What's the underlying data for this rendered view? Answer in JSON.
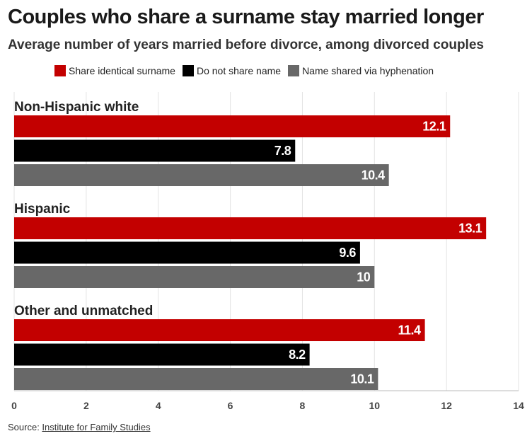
{
  "chart_data": {
    "type": "bar",
    "orientation": "horizontal",
    "title": "Couples who share a surname stay married longer",
    "subtitle": "Average number of years married before divorce, among divorced couples",
    "groups": [
      "Non-Hispanic white",
      "Hispanic",
      "Other and unmatched"
    ],
    "series": [
      {
        "name": "Share identical surname",
        "color": "#c30000",
        "values": [
          12.1,
          13.1,
          11.4
        ]
      },
      {
        "name": "Do not share name",
        "color": "#000000",
        "values": [
          7.8,
          9.6,
          8.2
        ]
      },
      {
        "name": "Name shared via hyphenation",
        "color": "#686868",
        "values": [
          10.4,
          10,
          10.1
        ]
      }
    ],
    "value_labels": [
      [
        "12.1",
        "13.1",
        "11.4"
      ],
      [
        "7.8",
        "9.6",
        "8.2"
      ],
      [
        "10.4",
        "10",
        "10.1"
      ]
    ],
    "xlim": [
      0,
      14
    ],
    "xticks": [
      0,
      2,
      4,
      6,
      8,
      10,
      12,
      14
    ],
    "xtick_labels": [
      "0",
      "2",
      "4",
      "6",
      "8",
      "10",
      "12",
      "14"
    ],
    "grid": true,
    "legend_position": "top"
  },
  "source": {
    "prefix": "Source: ",
    "link_text": "Institute for Family Studies"
  }
}
